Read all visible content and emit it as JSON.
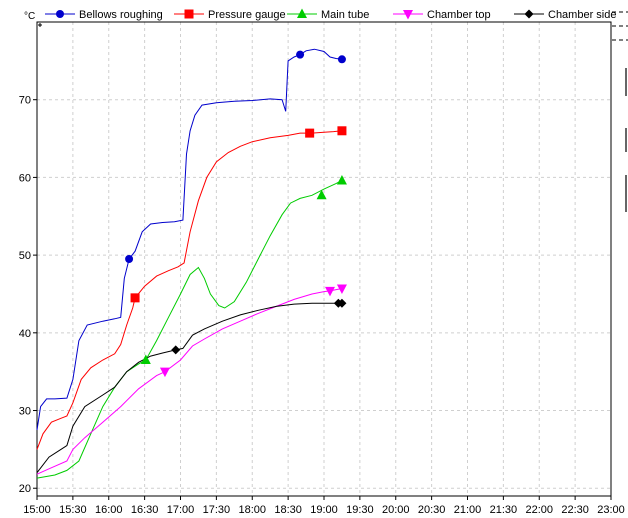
{
  "chart_data": {
    "type": "line",
    "unit": "°C",
    "xlim": [
      "15:00",
      "23:00"
    ],
    "ylim": [
      19,
      80
    ],
    "x_ticks": [
      "15:00",
      "15:30",
      "16:00",
      "16:30",
      "17:00",
      "17:30",
      "18:00",
      "18:30",
      "19:00",
      "19:30",
      "20:00",
      "20:30",
      "21:00",
      "21:30",
      "22:00",
      "22:30",
      "23:00"
    ],
    "y_ticks": [
      20,
      30,
      40,
      50,
      60,
      70
    ],
    "grid": true,
    "legend_position": "top",
    "series": [
      {
        "name": "Bellows roughing",
        "color": "#0000cc",
        "marker": "circle",
        "points": [
          [
            "15:00",
            27.5
          ],
          [
            "15:03",
            30.5
          ],
          [
            "15:08",
            31.5
          ],
          [
            "15:15",
            31.5
          ],
          [
            "15:25",
            31.6
          ],
          [
            "15:30",
            34
          ],
          [
            "15:35",
            39
          ],
          [
            "15:42",
            41
          ],
          [
            "15:55",
            41.5
          ],
          [
            "16:05",
            41.8
          ],
          [
            "16:10",
            42
          ],
          [
            "16:13",
            47
          ],
          [
            "16:17",
            49.5
          ],
          [
            "16:22",
            50.5
          ],
          [
            "16:28",
            53
          ],
          [
            "16:35",
            54
          ],
          [
            "16:45",
            54.2
          ],
          [
            "16:55",
            54.3
          ],
          [
            "17:02",
            54.5
          ],
          [
            "17:05",
            63
          ],
          [
            "17:08",
            66
          ],
          [
            "17:12",
            68
          ],
          [
            "17:18",
            69.3
          ],
          [
            "17:30",
            69.6
          ],
          [
            "17:45",
            69.8
          ],
          [
            "18:00",
            69.9
          ],
          [
            "18:15",
            70.1
          ],
          [
            "18:25",
            70
          ],
          [
            "18:28",
            68.5
          ],
          [
            "18:30",
            75
          ],
          [
            "18:35",
            75.5
          ],
          [
            "18:40",
            75.8
          ],
          [
            "18:45",
            76.3
          ],
          [
            "18:52",
            76.5
          ],
          [
            "19:00",
            76.2
          ],
          [
            "19:05",
            75.5
          ],
          [
            "19:10",
            75.3
          ],
          [
            "19:15",
            75.2
          ]
        ],
        "markers": [
          [
            "16:17",
            49.5
          ],
          [
            "18:40",
            75.8
          ],
          [
            "19:15",
            75.2
          ]
        ]
      },
      {
        "name": "Pressure gauge",
        "color": "#ff0000",
        "marker": "square",
        "points": [
          [
            "15:00",
            25
          ],
          [
            "15:05",
            27
          ],
          [
            "15:12",
            28.5
          ],
          [
            "15:20",
            29
          ],
          [
            "15:25",
            29.3
          ],
          [
            "15:30",
            31
          ],
          [
            "15:37",
            34
          ],
          [
            "15:45",
            35.5
          ],
          [
            "15:55",
            36.5
          ],
          [
            "16:05",
            37.3
          ],
          [
            "16:10",
            38.5
          ],
          [
            "16:15",
            41
          ],
          [
            "16:20",
            43.2
          ],
          [
            "16:22",
            44.5
          ],
          [
            "16:30",
            46
          ],
          [
            "16:40",
            47.3
          ],
          [
            "16:50",
            48
          ],
          [
            "16:58",
            48.5
          ],
          [
            "17:03",
            49
          ],
          [
            "17:08",
            53
          ],
          [
            "17:15",
            57
          ],
          [
            "17:22",
            60
          ],
          [
            "17:30",
            62
          ],
          [
            "17:40",
            63.2
          ],
          [
            "17:50",
            64
          ],
          [
            "18:00",
            64.6
          ],
          [
            "18:15",
            65.1
          ],
          [
            "18:30",
            65.4
          ],
          [
            "18:40",
            65.7
          ],
          [
            "18:50",
            65.7
          ],
          [
            "19:00",
            65.8
          ],
          [
            "19:08",
            65.9
          ],
          [
            "19:15",
            66
          ]
        ],
        "markers": [
          [
            "16:22",
            44.5
          ],
          [
            "18:48",
            65.7
          ],
          [
            "19:15",
            66
          ]
        ]
      },
      {
        "name": "Main tube",
        "color": "#00cc00",
        "marker": "triangle-up",
        "points": [
          [
            "15:00",
            21.3
          ],
          [
            "15:15",
            21.7
          ],
          [
            "15:25",
            22.3
          ],
          [
            "15:35",
            23.5
          ],
          [
            "15:45",
            27
          ],
          [
            "15:55",
            30.5
          ],
          [
            "16:05",
            33
          ],
          [
            "16:15",
            35
          ],
          [
            "16:25",
            36
          ],
          [
            "16:31",
            36.5
          ],
          [
            "16:40",
            39
          ],
          [
            "16:50",
            42
          ],
          [
            "17:00",
            45
          ],
          [
            "17:08",
            47.5
          ],
          [
            "17:15",
            48.4
          ],
          [
            "17:20",
            47
          ],
          [
            "17:25",
            45
          ],
          [
            "17:32",
            43.5
          ],
          [
            "17:37",
            43.2
          ],
          [
            "17:45",
            44
          ],
          [
            "17:55",
            46.5
          ],
          [
            "18:05",
            49.5
          ],
          [
            "18:15",
            52.5
          ],
          [
            "18:25",
            55.2
          ],
          [
            "18:32",
            56.7
          ],
          [
            "18:40",
            57.3
          ],
          [
            "18:50",
            57.7
          ],
          [
            "19:00",
            58.5
          ],
          [
            "19:10",
            59.2
          ],
          [
            "19:15",
            59.6
          ]
        ],
        "markers": [
          [
            "16:31",
            36.5
          ],
          [
            "18:58",
            57.7
          ],
          [
            "19:15",
            59.6
          ]
        ]
      },
      {
        "name": "Chamber top",
        "color": "#ff00ff",
        "marker": "triangle-down",
        "points": [
          [
            "15:00",
            21.8
          ],
          [
            "15:10",
            22.5
          ],
          [
            "15:25",
            23.5
          ],
          [
            "15:30",
            25
          ],
          [
            "15:40",
            26.5
          ],
          [
            "15:55",
            28.5
          ],
          [
            "16:10",
            30.5
          ],
          [
            "16:25",
            32.8
          ],
          [
            "16:40",
            34.5
          ],
          [
            "16:47",
            35
          ],
          [
            "17:00",
            36.5
          ],
          [
            "17:10",
            38.3
          ],
          [
            "17:20",
            39.2
          ],
          [
            "17:35",
            40.5
          ],
          [
            "17:50",
            41.5
          ],
          [
            "18:05",
            42.5
          ],
          [
            "18:20",
            43.4
          ],
          [
            "18:35",
            44.3
          ],
          [
            "18:50",
            45
          ],
          [
            "19:00",
            45.3
          ],
          [
            "19:05",
            45.4
          ],
          [
            "19:15",
            45.7
          ]
        ],
        "markers": [
          [
            "16:47",
            35
          ],
          [
            "19:05",
            45.4
          ],
          [
            "19:15",
            45.7
          ]
        ]
      },
      {
        "name": "Chamber side",
        "color": "#000000",
        "marker": "diamond",
        "points": [
          [
            "15:00",
            22
          ],
          [
            "15:10",
            24
          ],
          [
            "15:20",
            25
          ],
          [
            "15:25",
            25.5
          ],
          [
            "15:30",
            28
          ],
          [
            "15:40",
            30.5
          ],
          [
            "15:55",
            32
          ],
          [
            "16:05",
            33
          ],
          [
            "16:15",
            35
          ],
          [
            "16:25",
            36.2
          ],
          [
            "16:35",
            37
          ],
          [
            "16:45",
            37.4
          ],
          [
            "16:56",
            37.8
          ],
          [
            "17:02",
            38
          ],
          [
            "17:10",
            39.7
          ],
          [
            "17:20",
            40.5
          ],
          [
            "17:35",
            41.5
          ],
          [
            "17:50",
            42.3
          ],
          [
            "18:05",
            42.9
          ],
          [
            "18:20",
            43.4
          ],
          [
            "18:35",
            43.7
          ],
          [
            "18:50",
            43.8
          ],
          [
            "19:00",
            43.8
          ],
          [
            "19:10",
            43.8
          ],
          [
            "19:15",
            43.8
          ]
        ],
        "markers": [
          [
            "16:56",
            37.8
          ],
          [
            "19:12",
            43.8
          ],
          [
            "19:15",
            43.8
          ]
        ]
      }
    ]
  }
}
